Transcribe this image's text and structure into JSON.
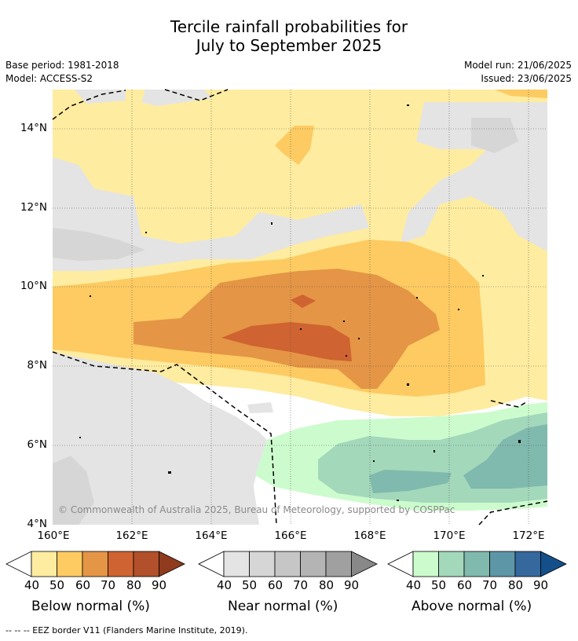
{
  "title": {
    "line1": "Tercile rainfall probabilities for",
    "line2": "July to September 2025"
  },
  "meta": {
    "base_period": "Base period: 1981-2018",
    "model": "Model: ACCESS-S2",
    "model_run": "Model run: 21/06/2025",
    "issued": "Issued: 23/06/2025"
  },
  "map": {
    "lat_labels": [
      "14°N",
      "12°N",
      "10°N",
      "8°N",
      "6°N",
      "4°N"
    ],
    "lon_labels": [
      "160°E",
      "162°E",
      "164°E",
      "166°E",
      "168°E",
      "170°E",
      "172°E"
    ],
    "credit": "© Commonwealth of Australia 2025, Bureau of Meteorology, supported by COSPPac"
  },
  "colorbars": {
    "below": {
      "label": "Below normal (%)",
      "ticks": [
        "40",
        "50",
        "60",
        "70",
        "80",
        "90"
      ],
      "colors": [
        "#feeca0",
        "#fdcb62",
        "#e49545",
        "#cf6331",
        "#b1502a",
        "#903a1e"
      ]
    },
    "near": {
      "label": "Near normal (%)",
      "ticks": [
        "40",
        "50",
        "60",
        "70",
        "80",
        "90"
      ],
      "colors": [
        "#e4e4e4",
        "#d6d6d6",
        "#c6c6c6",
        "#b4b4b4",
        "#a0a0a0",
        "#888888"
      ]
    },
    "above": {
      "label": "Above normal (%)",
      "ticks": [
        "40",
        "50",
        "60",
        "70",
        "80",
        "90"
      ],
      "colors": [
        "#ccfccd",
        "#a3d8bb",
        "#80b9ad",
        "#5d96a7",
        "#35689c",
        "#144f8a"
      ]
    }
  },
  "footer": "-- -- -- EEZ border V11 (Flanders Marine Institute, 2019)."
}
